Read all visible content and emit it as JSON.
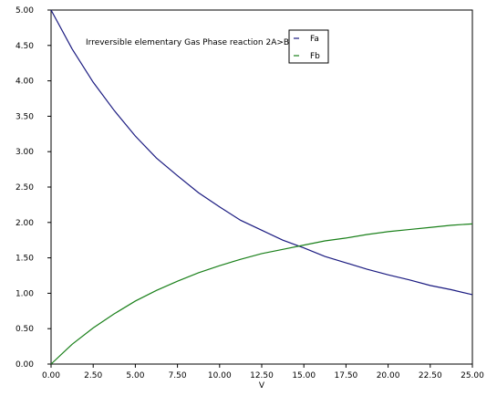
{
  "chart_data": {
    "type": "line",
    "title": "Irreversible elementary Gas Phase reaction 2A>B",
    "xlabel": "V",
    "ylabel": "",
    "xlim": [
      0,
      25
    ],
    "ylim": [
      0,
      5
    ],
    "x_ticks": [
      "0.00",
      "2.50",
      "5.00",
      "7.50",
      "10.00",
      "12.50",
      "15.00",
      "17.50",
      "20.00",
      "22.50",
      "25.00"
    ],
    "y_ticks": [
      "0.00",
      "0.50",
      "1.00",
      "1.50",
      "2.00",
      "2.50",
      "3.00",
      "3.50",
      "4.00",
      "4.50",
      "5.00"
    ],
    "grid": false,
    "legend_position": "top-right",
    "x": [
      0,
      1.25,
      2.5,
      3.75,
      5,
      6.25,
      7.5,
      8.75,
      10,
      11.25,
      12.5,
      13.75,
      15,
      16.25,
      17.5,
      18.75,
      20,
      21.25,
      22.5,
      23.75,
      25
    ],
    "series": [
      {
        "name": "Fa",
        "color": "#1a1a80",
        "values": [
          5.0,
          4.45,
          3.98,
          3.58,
          3.22,
          2.91,
          2.66,
          2.42,
          2.22,
          2.03,
          1.89,
          1.75,
          1.64,
          1.52,
          1.43,
          1.34,
          1.26,
          1.19,
          1.11,
          1.05,
          0.98
        ]
      },
      {
        "name": "Fb",
        "color": "#1a801a",
        "values": [
          0.0,
          0.28,
          0.51,
          0.71,
          0.89,
          1.04,
          1.17,
          1.29,
          1.39,
          1.48,
          1.56,
          1.62,
          1.68,
          1.74,
          1.78,
          1.83,
          1.87,
          1.9,
          1.93,
          1.96,
          1.98
        ]
      }
    ]
  }
}
